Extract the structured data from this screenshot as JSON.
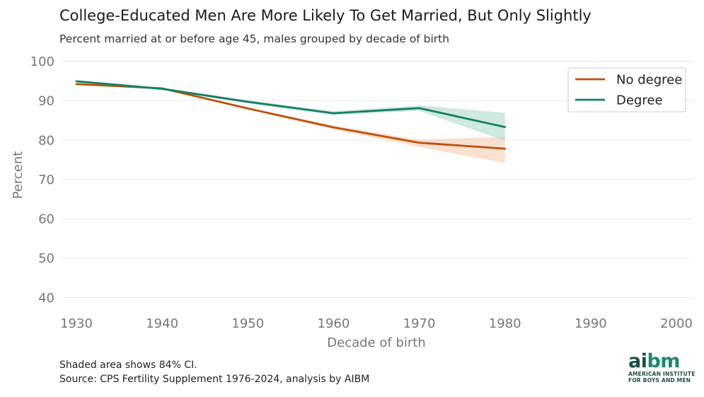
{
  "title": "College-Educated Men Are More Likely To Get Married, But Only Slightly",
  "subtitle": "Percent married at or before age 45, males grouped by decade of birth",
  "footnote": "Shaded area shows 84% CI.",
  "source": "Source: CPS Fertility Supplement 1976-2024, analysis by AIBM",
  "logo": {
    "mark_prefix": "ai",
    "mark_suffix": "bm",
    "line1": "AMERICAN INSTITUTE",
    "line2": "FOR BOYS AND MEN"
  },
  "colors": {
    "no_degree": "#c0500a",
    "degree": "#128064",
    "no_degree_band": "#f4c9a8",
    "degree_band": "#a7d6c6",
    "grid": "#ececec",
    "axis_text": "#777777"
  },
  "chart_data": {
    "type": "line",
    "title": "College-Educated Men Are More Likely To Get Married, But Only Slightly",
    "subtitle": "Percent married at or before age 45, males grouped by decade of birth",
    "xlabel": "Decade of birth",
    "ylabel": "Percent",
    "xlim": [
      1930,
      2000
    ],
    "ylim": [
      37,
      101
    ],
    "xticks": [
      1930,
      1940,
      1950,
      1960,
      1970,
      1980,
      1990,
      2000
    ],
    "yticks": [
      40,
      50,
      60,
      70,
      80,
      90,
      100
    ],
    "grid": "horizontal",
    "legend_position": "top-right",
    "series": [
      {
        "name": "No degree",
        "color": "#c0500a",
        "x": [
          1930,
          1940,
          1950,
          1960,
          1970,
          1980
        ],
        "y": [
          94.2,
          93.1,
          88.0,
          83.2,
          79.3,
          77.8
        ],
        "ci_low": [
          94.0,
          92.9,
          87.8,
          82.7,
          78.2,
          74.2
        ],
        "ci_high": [
          94.4,
          93.3,
          88.2,
          83.7,
          80.1,
          80.8
        ]
      },
      {
        "name": "Degree",
        "color": "#128064",
        "x": [
          1930,
          1940,
          1950,
          1960,
          1970,
          1980
        ],
        "y": [
          94.9,
          93.0,
          89.7,
          86.8,
          88.1,
          83.3
        ],
        "ci_low": [
          94.6,
          92.7,
          89.3,
          86.3,
          87.4,
          79.8
        ],
        "ci_high": [
          95.2,
          93.3,
          90.1,
          87.3,
          88.8,
          86.9
        ]
      }
    ]
  }
}
